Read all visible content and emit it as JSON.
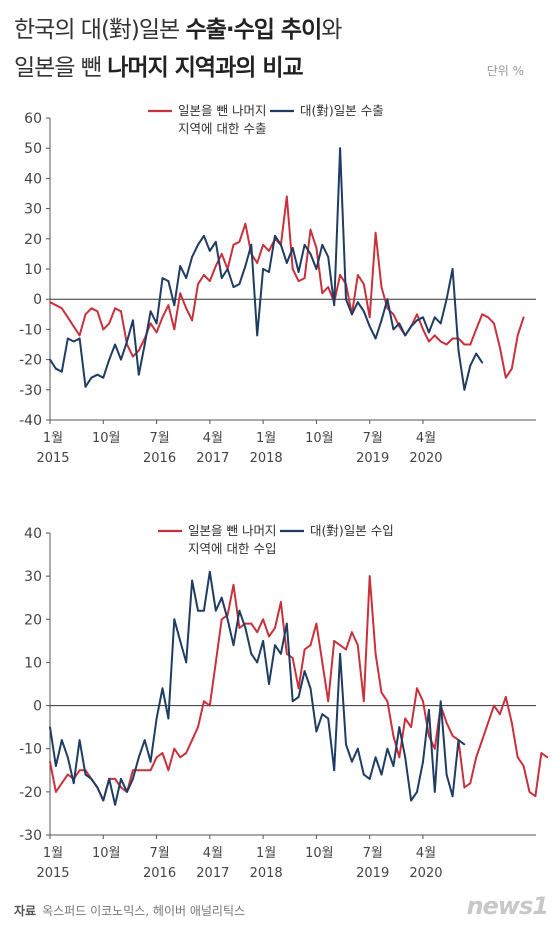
{
  "title": {
    "line1_normal": "한국의 대(對)일본 ",
    "line1_bold": "수출·수입 추이",
    "line1_end": "와",
    "line2_normal": "일본을 뺀 ",
    "line2_bold": "나머지 지역과의 비교"
  },
  "unit": "단위 %",
  "source_label": "자료",
  "source_text": "옥스퍼드 이코노믹스, 헤이버 애널리틱스",
  "logo": "news1",
  "colors": {
    "red": "#c8323c",
    "blue": "#1f3d63",
    "axis": "#555555"
  },
  "chart_data": [
    {
      "type": "line",
      "title": "",
      "ylim": [
        -40,
        60
      ],
      "yticks": [
        -40,
        -30,
        -20,
        -10,
        0,
        10,
        20,
        30,
        40,
        50,
        60
      ],
      "xticks": [
        {
          "month": 0,
          "label": "1월",
          "year": "2015"
        },
        {
          "month": 9,
          "label": "10월",
          "year": ""
        },
        {
          "month": 18,
          "label": "7월",
          "year": "2016"
        },
        {
          "month": 27,
          "label": "4월",
          "year": "2017"
        },
        {
          "month": 36,
          "label": "1월",
          "year": "2018"
        },
        {
          "month": 45,
          "label": "10월",
          "year": ""
        },
        {
          "month": 54,
          "label": "7월",
          "year": "2019"
        },
        {
          "month": 63,
          "label": "4월",
          "year": "2020"
        }
      ],
      "legend": [
        {
          "name": "일본을 뺀 나머지",
          "name2": "지역에 대한 수출",
          "color": "#c8323c"
        },
        {
          "name": "대(對)일본 수출",
          "name2": "",
          "color": "#1f3d63"
        }
      ],
      "series": [
        {
          "name": "일본을 뺀 나머지 지역에 대한 수출",
          "color": "#c8323c",
          "values": [
            -1,
            -2,
            -3,
            -6,
            -9,
            -12,
            -5,
            -3,
            -4,
            -10,
            -8,
            -3,
            -4,
            -15,
            -19,
            -17,
            -13,
            -8,
            -11,
            -6,
            -2,
            -10,
            2,
            -3,
            -7,
            5,
            8,
            6,
            11,
            15,
            10,
            18,
            19,
            25,
            15,
            12,
            18,
            16,
            20,
            18,
            34,
            10,
            6,
            7,
            23,
            17,
            2,
            4,
            -1,
            8,
            5,
            -5,
            8,
            5,
            -6,
            22,
            4,
            -3,
            -5,
            -9,
            -12,
            -9,
            -5,
            -10,
            -14,
            -12,
            -14,
            -15,
            -13,
            -13,
            -15,
            -15,
            -10,
            -5,
            -6,
            -8,
            -16,
            -26,
            -23,
            -12,
            -6
          ]
        },
        {
          "name": "대(對)일본 수출",
          "color": "#1f3d63",
          "values": [
            -20,
            -23,
            -24,
            -13,
            -14,
            -13,
            -29,
            -26,
            -25,
            -26,
            -20,
            -15,
            -20,
            -14,
            -7,
            -25,
            -15,
            -4,
            -8,
            7,
            6,
            -2,
            11,
            7,
            14,
            18,
            21,
            16,
            19,
            7,
            10,
            4,
            5,
            11,
            18,
            -12,
            10,
            9,
            21,
            18,
            12,
            17,
            9,
            18,
            15,
            10,
            18,
            14,
            -2,
            50,
            0,
            -5,
            -1,
            -4,
            -9,
            -13,
            -7,
            0,
            -10,
            -8,
            -12,
            -9,
            -7,
            -6,
            -11,
            -6,
            -8,
            0,
            10,
            -17,
            -30,
            -22,
            -18,
            -21
          ]
        }
      ]
    },
    {
      "type": "line",
      "title": "",
      "ylim": [
        -30,
        40
      ],
      "yticks": [
        -30,
        -20,
        -10,
        0,
        10,
        20,
        30,
        40
      ],
      "xticks": [
        {
          "month": 0,
          "label": "1월",
          "year": "2015"
        },
        {
          "month": 9,
          "label": "10월",
          "year": ""
        },
        {
          "month": 18,
          "label": "7월",
          "year": "2016"
        },
        {
          "month": 27,
          "label": "4월",
          "year": "2017"
        },
        {
          "month": 36,
          "label": "1월",
          "year": "2018"
        },
        {
          "month": 45,
          "label": "10월",
          "year": ""
        },
        {
          "month": 54,
          "label": "7월",
          "year": "2019"
        },
        {
          "month": 63,
          "label": "4월",
          "year": "2020"
        }
      ],
      "legend": [
        {
          "name": "일본을 뺀 나머지",
          "name2": "지역에 대한 수입",
          "color": "#c8323c"
        },
        {
          "name": "대(對)일본 수입",
          "name2": "",
          "color": "#1f3d63"
        }
      ],
      "series": [
        {
          "name": "일본을 뺀 나머지 지역에 대한 수입",
          "color": "#c8323c",
          "values": [
            -13,
            -20,
            -18,
            -16,
            -17,
            -15,
            -15,
            -17,
            -19,
            -22,
            -17,
            -17,
            -19,
            -20,
            -15,
            -15,
            -15,
            -15,
            -12,
            -11,
            -15,
            -10,
            -12,
            -11,
            -8,
            -5,
            1,
            0,
            10,
            20,
            21,
            28,
            18,
            19,
            19,
            17,
            20,
            16,
            18,
            24,
            12,
            11,
            4,
            13,
            14,
            19,
            10,
            1,
            15,
            14,
            13,
            17,
            14,
            1,
            30,
            12,
            3,
            1,
            -7,
            -12,
            -3,
            -5,
            4,
            1,
            -7,
            -10,
            0,
            -4,
            -7,
            -8,
            -19,
            -18,
            -12,
            -8,
            -4,
            0,
            -2,
            2,
            -4,
            -12,
            -14,
            -20,
            -21,
            -11,
            -12
          ]
        },
        {
          "name": "대(對)일본 수입",
          "color": "#1f3d63",
          "values": [
            -5,
            -14,
            -8,
            -12,
            -18,
            -8,
            -16,
            -17,
            -19,
            -22,
            -17,
            -23,
            -17,
            -20,
            -17,
            -12,
            -8,
            -13,
            -3,
            4,
            -3,
            20,
            15,
            10,
            29,
            22,
            22,
            31,
            22,
            25,
            20,
            14,
            22,
            18,
            12,
            10,
            15,
            5,
            14,
            12,
            19,
            1,
            2,
            8,
            4,
            -6,
            -2,
            -3,
            -15,
            12,
            -9,
            -13,
            -10,
            -16,
            -17,
            -12,
            -16,
            -10,
            -14,
            -5,
            -12,
            -22,
            -20,
            -13,
            -1,
            -20,
            1,
            -16,
            -21,
            -8,
            -9
          ]
        }
      ]
    }
  ]
}
